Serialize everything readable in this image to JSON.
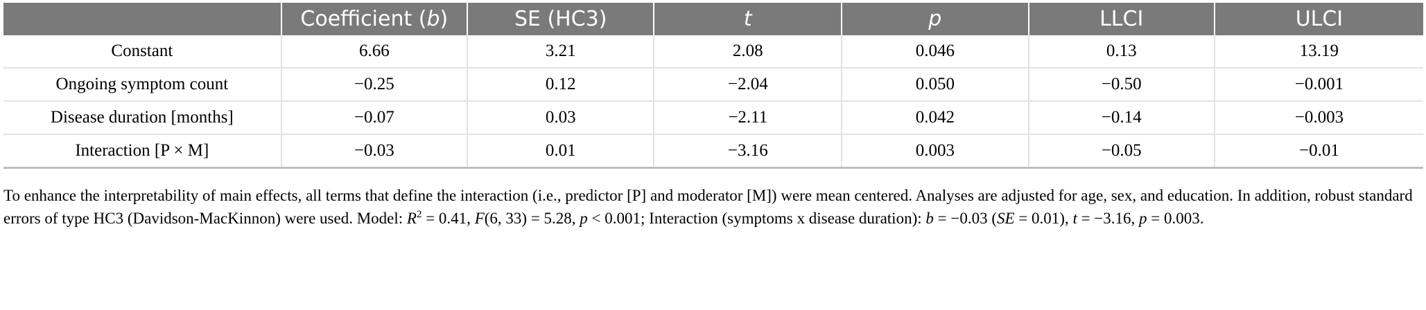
{
  "table": {
    "columns": [
      "",
      "Coefficient (b)",
      "SE (HC3)",
      "t",
      "p",
      "LLCI",
      "ULCI"
    ],
    "rows": [
      {
        "label": "Constant",
        "b": "6.66",
        "se": "3.21",
        "t": "2.08",
        "p": "0.046",
        "llci": "0.13",
        "ulci": "13.19"
      },
      {
        "label": "Ongoing symptom count",
        "b": "−0.25",
        "se": "0.12",
        "t": "−2.04",
        "p": "0.050",
        "llci": "−0.50",
        "ulci": "−0.001"
      },
      {
        "label": "Disease duration [months]",
        "b": "−0.07",
        "se": "0.03",
        "t": "−2.11",
        "p": "0.042",
        "llci": "−0.14",
        "ulci": "−0.003"
      },
      {
        "label": "Interaction [P × M]",
        "b": "−0.03",
        "se": "0.01",
        "t": "−3.16",
        "p": "0.003",
        "llci": "−0.05",
        "ulci": "−0.01"
      }
    ]
  },
  "footnote": {
    "seg1": "To enhance the interpretability of main effects, all terms that define the interaction (i.e., predictor [P] and moderator [M]) were mean centered. Analyses are adjusted for age, sex, and education. In addition, robust standard errors of type HC3 (Davidson-MacKinnon) were used. Model: ",
    "r": "R",
    "r_sup": "2",
    "seg2": " = 0.41, ",
    "f": "F",
    "seg3": "(6, 33) = 5.28, ",
    "p1": "p",
    "seg4": " < 0.001; Interaction (symptoms x disease duration): ",
    "b": "b",
    "seg5": " = −0.03 (",
    "se": "SE",
    "seg6": " = 0.01), ",
    "t": "t",
    "seg7": " = −3.16, ",
    "p2": "p",
    "seg8": " = 0.003."
  }
}
